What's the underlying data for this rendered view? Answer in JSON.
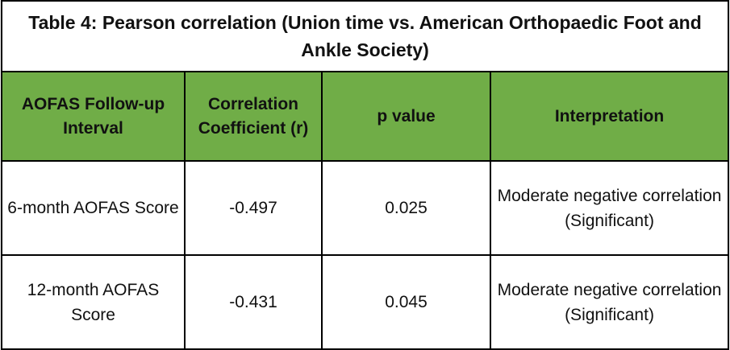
{
  "table": {
    "title": "Table 4: Pearson correlation (Union time vs. American  Orthopaedic Foot and Ankle Society)",
    "headers": [
      "AOFAS Follow-up Interval",
      "Correlation Coefficient (r)",
      "p value",
      "Interpretation"
    ],
    "rows": [
      [
        "6-month AOFAS Score",
        "-0.497",
        "0.025",
        "Moderate negative correlation (Significant)"
      ],
      [
        "12-month AOFAS Score",
        "-0.431",
        "0.045",
        "Moderate negative correlation (Significant)"
      ]
    ]
  }
}
